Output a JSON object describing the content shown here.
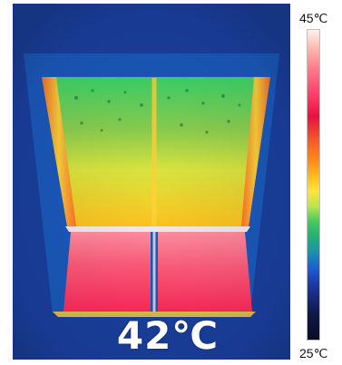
{
  "image": {
    "subject": "thermal-image",
    "temperature_readout": "42℃"
  },
  "scale": {
    "max_label": "45℃",
    "min_label": "25℃"
  },
  "palette": {
    "background_blue": "#1a3f9e",
    "cool_blue": "#1e5fc8",
    "green": "#45c85e",
    "yellow": "#ffd23a",
    "orange": "#ff8a16",
    "red": "#e8113f",
    "hot_pink": "#ff6f88",
    "white": "#ffffff"
  }
}
